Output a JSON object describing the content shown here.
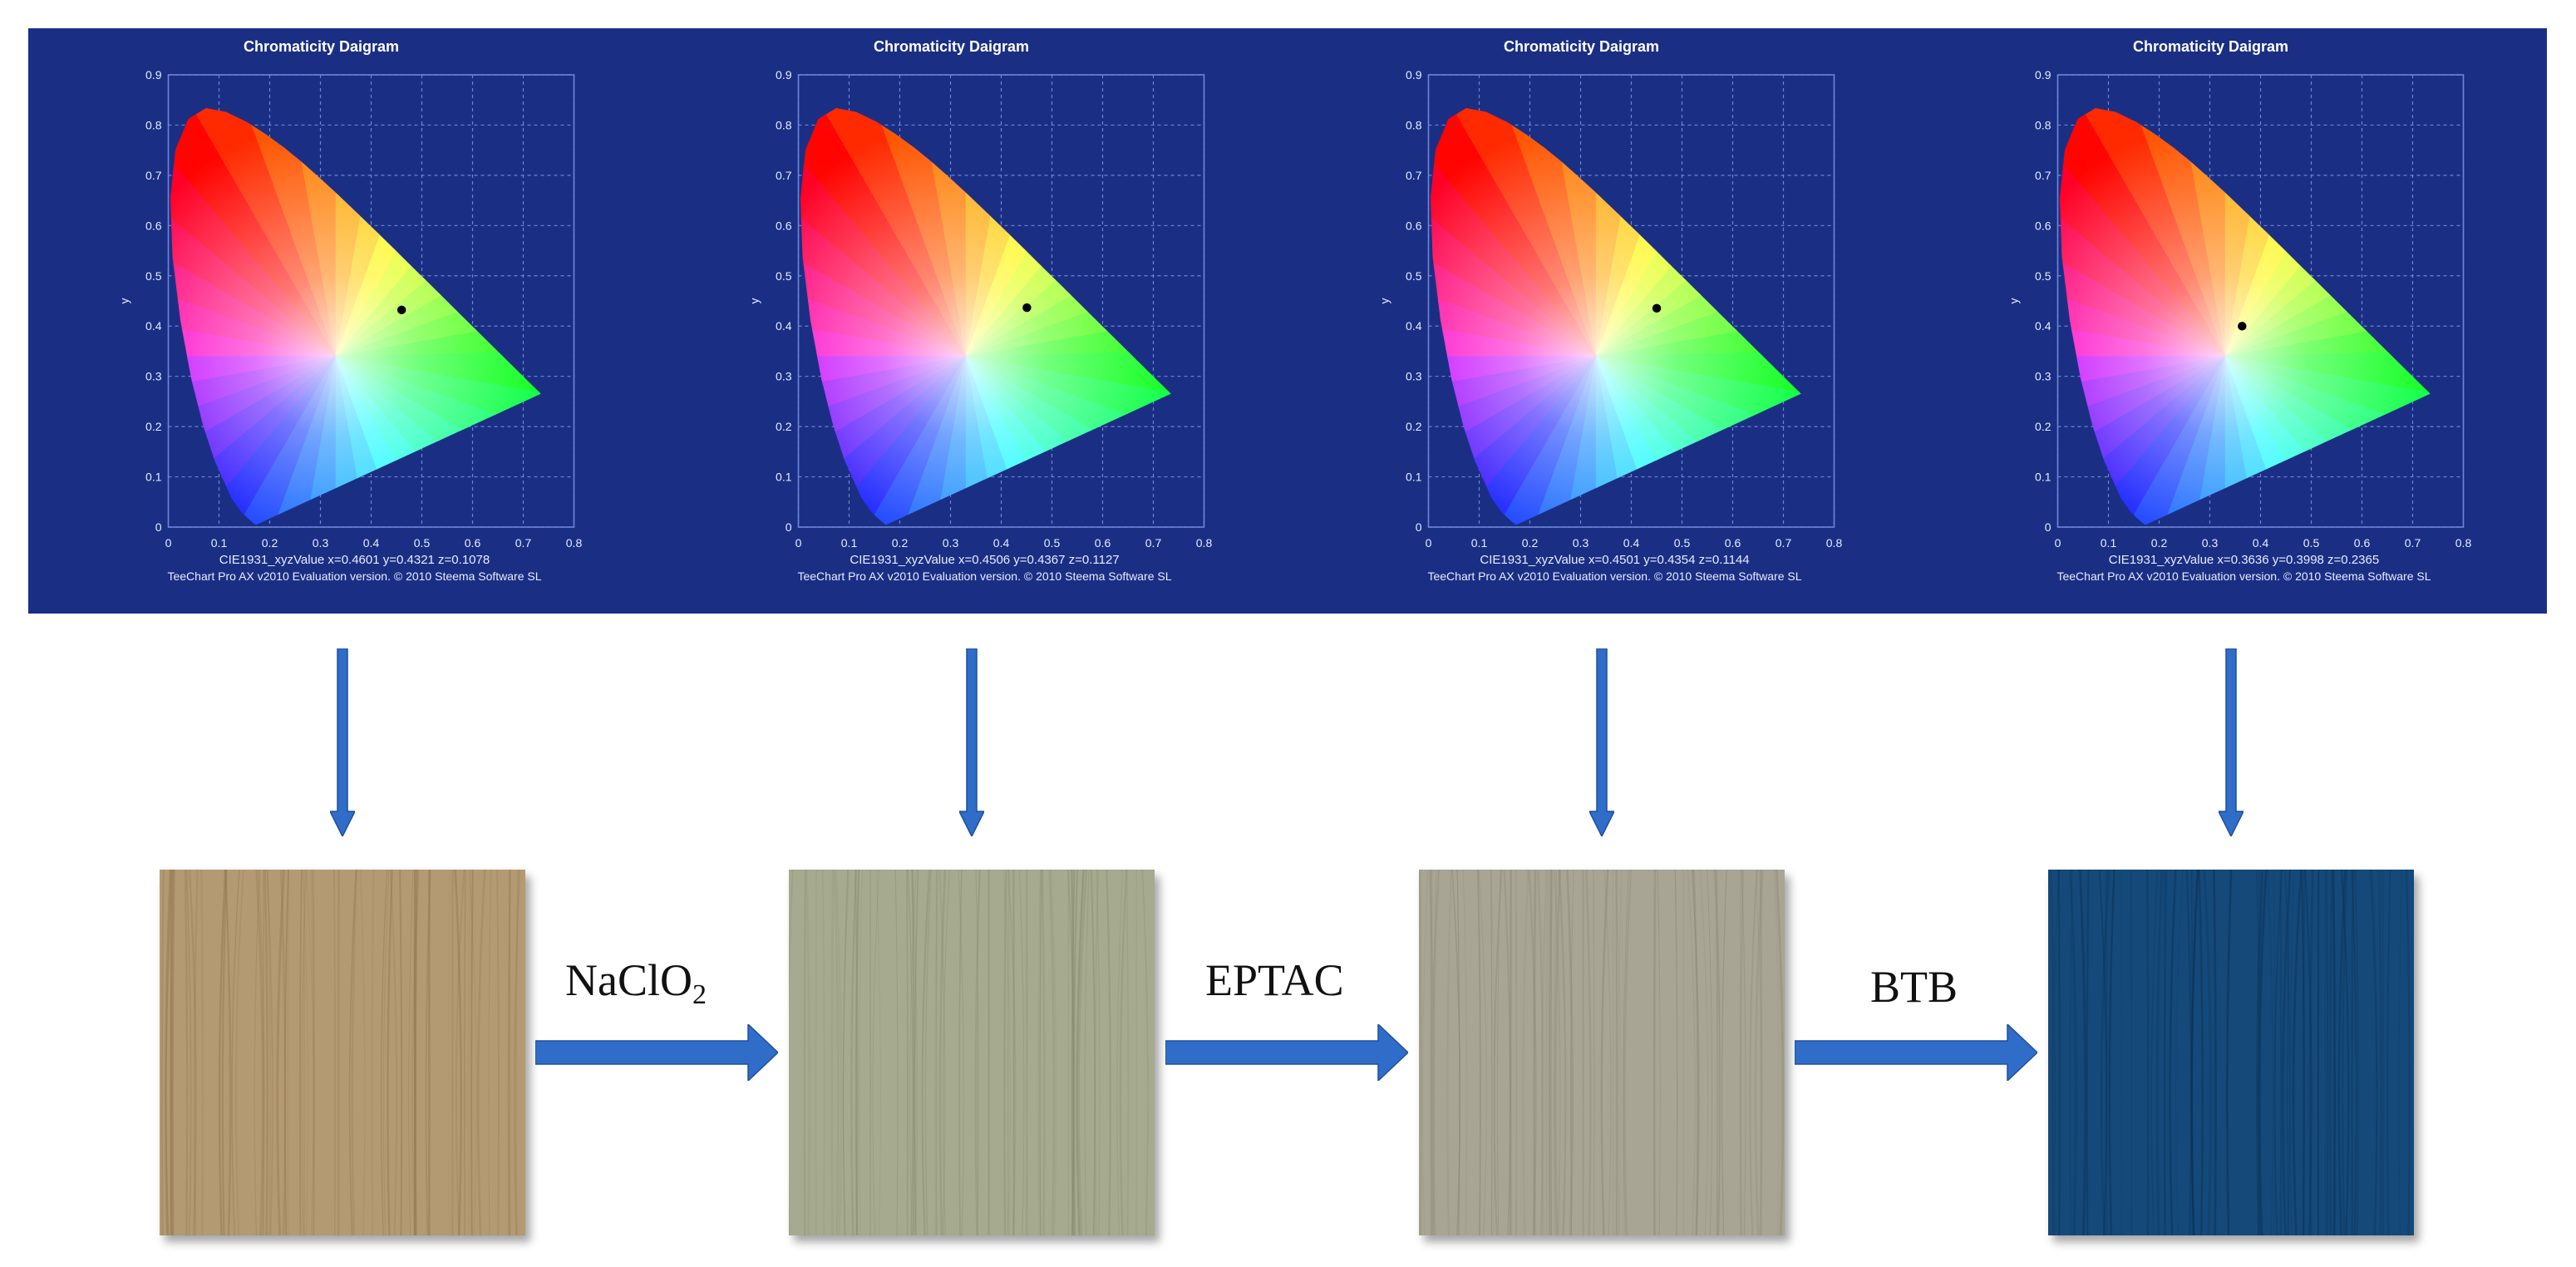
{
  "colors": {
    "band_bg": "#1a2f84",
    "arrow": "#2f6dc9",
    "chart_text": "#e6ecff",
    "grid": "#6e84d6"
  },
  "icons": {
    "down_arrow": "arrow-down-icon",
    "process_arrow": "arrow-right-icon"
  },
  "chart_data": [
    {
      "type": "scatter",
      "title": "Chromaticity Daigram",
      "xlabel": "CIE1931_xyzValue x=0.4601 y=0.4321 z=0.1078",
      "ylabel": "y",
      "footer": "TeeChart Pro AX v2010 Evaluation version. © 2010 Steema Software SL",
      "xlim": [
        0,
        0.8
      ],
      "ylim": [
        0,
        0.9
      ],
      "xticks": [
        "0",
        "0.1",
        "0.2",
        "0.3",
        "0.4",
        "0.5",
        "0.6",
        "0.7",
        "0.8"
      ],
      "yticks": [
        "0",
        "0.1",
        "0.2",
        "0.3",
        "0.4",
        "0.5",
        "0.6",
        "0.7",
        "0.8",
        "0.9"
      ],
      "grid": true,
      "point": {
        "x": 0.4601,
        "y": 0.4321
      }
    },
    {
      "type": "scatter",
      "title": "Chromaticity Daigram",
      "xlabel": "CIE1931_xyzValue x=0.4506 y=0.4367 z=0.1127",
      "ylabel": "y",
      "footer": "TeeChart Pro AX v2010 Evaluation version. © 2010 Steema Software SL",
      "xlim": [
        0,
        0.8
      ],
      "ylim": [
        0,
        0.9
      ],
      "xticks": [
        "0",
        "0.1",
        "0.2",
        "0.3",
        "0.4",
        "0.5",
        "0.6",
        "0.7",
        "0.8"
      ],
      "yticks": [
        "0",
        "0.1",
        "0.2",
        "0.3",
        "0.4",
        "0.5",
        "0.6",
        "0.7",
        "0.8",
        "0.9"
      ],
      "grid": true,
      "point": {
        "x": 0.4506,
        "y": 0.4367
      }
    },
    {
      "type": "scatter",
      "title": "Chromaticity Daigram",
      "xlabel": "CIE1931_xyzValue x=0.4501 y=0.4354 z=0.1144",
      "ylabel": "y",
      "footer": "TeeChart Pro AX v2010 Evaluation version. © 2010 Steema Software SL",
      "xlim": [
        0,
        0.8
      ],
      "ylim": [
        0,
        0.9
      ],
      "xticks": [
        "0",
        "0.1",
        "0.2",
        "0.3",
        "0.4",
        "0.5",
        "0.6",
        "0.7",
        "0.8"
      ],
      "yticks": [
        "0",
        "0.1",
        "0.2",
        "0.3",
        "0.4",
        "0.5",
        "0.6",
        "0.7",
        "0.8",
        "0.9"
      ],
      "grid": true,
      "point": {
        "x": 0.4501,
        "y": 0.4354
      }
    },
    {
      "type": "scatter",
      "title": "Chromaticity Daigram",
      "xlabel": "CIE1931_xyzValue x=0.3636 y=0.3998 z=0.2365",
      "ylabel": "y",
      "footer": "TeeChart Pro AX v2010 Evaluation version. © 2010 Steema Software SL",
      "xlim": [
        0,
        0.8
      ],
      "ylim": [
        0,
        0.9
      ],
      "xticks": [
        "0",
        "0.1",
        "0.2",
        "0.3",
        "0.4",
        "0.5",
        "0.6",
        "0.7",
        "0.8"
      ],
      "yticks": [
        "0",
        "0.1",
        "0.2",
        "0.3",
        "0.4",
        "0.5",
        "0.6",
        "0.7",
        "0.8",
        "0.9"
      ],
      "grid": true,
      "point": {
        "x": 0.3636,
        "y": 0.3998
      }
    }
  ],
  "samples": [
    {
      "color": "#b49a72",
      "grain": "#8e774f"
    },
    {
      "color": "#a6aa8e",
      "grain": "#868a6e"
    },
    {
      "color": "#a8a594",
      "grain": "#878474"
    },
    {
      "color": "#14497a",
      "grain": "#0b2f52"
    }
  ],
  "steps": [
    {
      "label": "NaClO",
      "subscript": "2"
    },
    {
      "label": "EPTAC"
    },
    {
      "label": "BTB"
    }
  ]
}
